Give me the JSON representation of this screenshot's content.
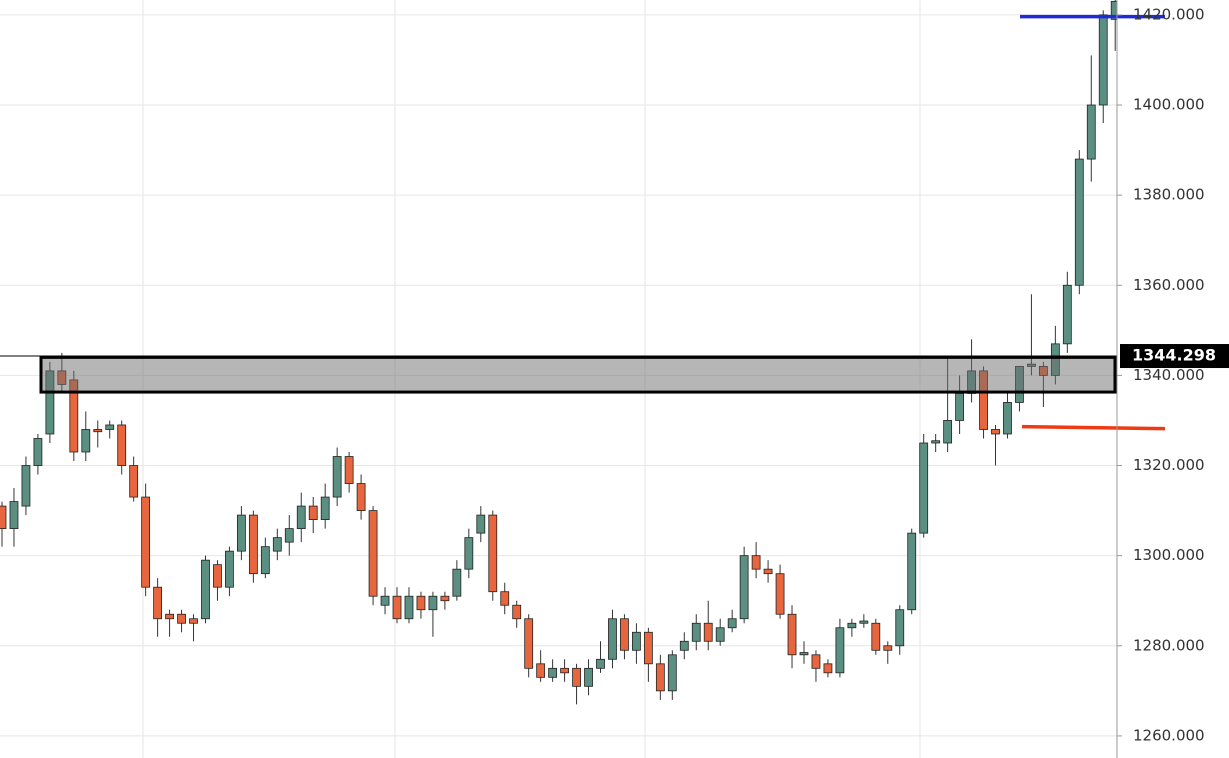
{
  "chart_data": {
    "type": "candlestick",
    "ylim": [
      1255.1,
      1423.3
    ],
    "yticks": [
      {
        "value": 1260,
        "label": "1260.000"
      },
      {
        "value": 1280,
        "label": "1280.000"
      },
      {
        "value": 1300,
        "label": "1300.000"
      },
      {
        "value": 1320,
        "label": "1320.000"
      },
      {
        "value": 1340,
        "label": "1340.000"
      },
      {
        "value": 1360,
        "label": "1360.000"
      },
      {
        "value": 1380,
        "label": "1380.000"
      },
      {
        "value": 1400,
        "label": "1400.000"
      },
      {
        "value": 1420,
        "label": "1420.000"
      }
    ],
    "grid": true,
    "up_color": "#5a8f82",
    "down_color": "#e8663d",
    "open": [
      1311,
      1306,
      1311,
      1320,
      1327,
      1341,
      1339,
      1323,
      1328,
      1328,
      1329,
      1320,
      1313,
      1293,
      1287,
      1287,
      1286,
      1286,
      1298,
      1293,
      1301,
      1309,
      1296,
      1301,
      1303,
      1306,
      1311,
      1308,
      1313,
      1322,
      1316,
      1310,
      1289,
      1291,
      1286,
      1291,
      1288,
      1291,
      1291,
      1297,
      1305,
      1309,
      1292,
      1289,
      1286,
      1276,
      1273,
      1275,
      1275,
      1271,
      1275,
      1277,
      1286,
      1279,
      1283,
      1276,
      1270,
      1279,
      1281,
      1285,
      1281,
      1284,
      1286,
      1300,
      1297,
      1296,
      1287,
      1278,
      1278,
      1276,
      1274,
      1284,
      1285,
      1285,
      1280,
      1280,
      1288,
      1305,
      1325,
      1325,
      1330,
      1336,
      1341,
      1328,
      1327,
      1334,
      1342,
      1342,
      1340,
      1347,
      1360,
      1388,
      1400,
      1419
    ],
    "high": [
      1312,
      1315,
      1322,
      1327,
      1343,
      1345,
      1341,
      1332,
      1330,
      1330,
      1330,
      1322,
      1316,
      1295,
      1288,
      1288,
      1287,
      1300,
      1299,
      1302,
      1311,
      1310,
      1304,
      1306,
      1309,
      1314,
      1313,
      1316,
      1324,
      1323,
      1318,
      1311,
      1293,
      1293,
      1293,
      1292,
      1292,
      1292,
      1299,
      1306,
      1311,
      1310,
      1294,
      1290,
      1287,
      1279,
      1277,
      1277,
      1276,
      1277,
      1281,
      1288,
      1287,
      1285,
      1284,
      1278,
      1279,
      1283,
      1287,
      1290,
      1286,
      1288,
      1302,
      1303,
      1299,
      1298,
      1289,
      1281,
      1279,
      1277,
      1286,
      1286,
      1287,
      1286,
      1281,
      1289,
      1306,
      1327,
      1327,
      1344,
      1340,
      1348,
      1342,
      1329,
      1336,
      1342,
      1358,
      1343,
      1351,
      1363,
      1390,
      1411,
      1421,
      1425
    ],
    "low": [
      1302,
      1302,
      1309,
      1318,
      1325,
      1336,
      1321,
      1321,
      1324,
      1326,
      1318,
      1312,
      1291,
      1282,
      1282,
      1283,
      1281,
      1285,
      1290,
      1291,
      1299,
      1294,
      1295,
      1299,
      1300,
      1303,
      1305,
      1306,
      1311,
      1314,
      1308,
      1289,
      1287,
      1285,
      1285,
      1286,
      1282,
      1288,
      1290,
      1295,
      1303,
      1290,
      1287,
      1284,
      1273,
      1272,
      1272,
      1272,
      1267,
      1269,
      1274,
      1275,
      1277,
      1276,
      1272,
      1268,
      1268,
      1277,
      1279,
      1279,
      1280,
      1283,
      1285,
      1295,
      1294,
      1286,
      1275,
      1276,
      1272,
      1273,
      1273,
      1282,
      1284,
      1278,
      1276,
      1278,
      1287,
      1304,
      1323,
      1323,
      1327,
      1334,
      1326,
      1320,
      1326,
      1332,
      1340,
      1333,
      1338,
      1345,
      1358,
      1383,
      1396,
      1412
    ],
    "close": [
      1306,
      1312,
      1320,
      1326,
      1341,
      1338,
      1323,
      1328,
      1327.5,
      1329,
      1320,
      1313,
      1293,
      1286,
      1286,
      1285,
      1285,
      1299,
      1293,
      1301,
      1309,
      1296,
      1302,
      1304,
      1306,
      1311,
      1308,
      1313,
      1322,
      1316,
      1310,
      1291,
      1291,
      1286,
      1291,
      1288,
      1291,
      1290,
      1297,
      1304,
      1309,
      1292,
      1289,
      1286,
      1275,
      1273,
      1275,
      1274,
      1271,
      1275,
      1277,
      1286,
      1279,
      1283,
      1276,
      1270,
      1278,
      1281,
      1285,
      1281,
      1284,
      1286,
      1300,
      1297,
      1296,
      1287,
      1278,
      1278.5,
      1275,
      1274,
      1284,
      1285,
      1285.5,
      1279,
      1279,
      1288,
      1305,
      1325,
      1325.5,
      1330,
      1336,
      1341,
      1328,
      1327,
      1334,
      1342,
      1342.5,
      1340,
      1347,
      1360,
      1388,
      1400,
      1420,
      1423
    ],
    "zone": [
      1336.3,
      1344.0
    ],
    "last_price": 1344.298,
    "target_line": {
      "value": 1419.6,
      "color": "#1f2bd6"
    },
    "stop_line": {
      "value": 1328.4,
      "color": "#f03a14"
    }
  }
}
